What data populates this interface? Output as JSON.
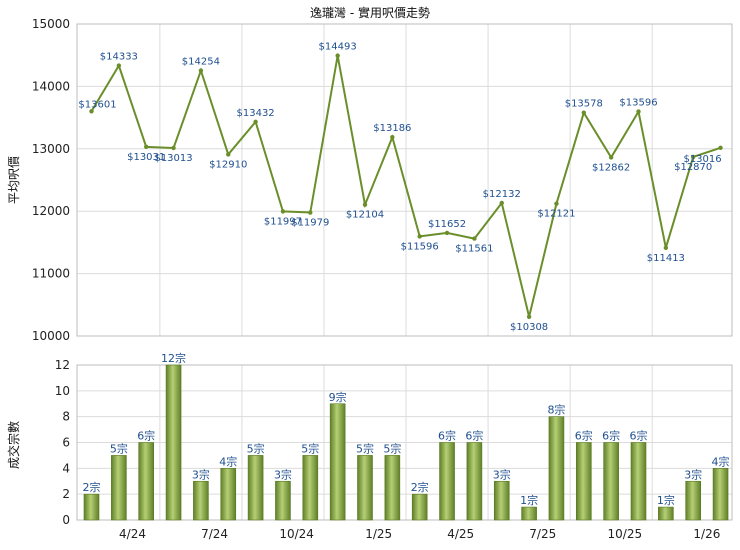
{
  "chart_data": [
    {
      "type": "line",
      "title": "逸瓏灣 - 實用呎價走勢",
      "ylabel": "平均呎價",
      "ylim": [
        10000,
        15000
      ],
      "yticks": [
        10000,
        11000,
        12000,
        13000,
        14000,
        15000
      ],
      "x_ticks": [
        "4/24",
        "7/24",
        "10/24",
        "1/25",
        "4/25",
        "7/25",
        "10/25",
        "1/26"
      ],
      "grid": true,
      "line_color": "#6a8f2a",
      "label_color": "#1f4f8f",
      "values": [
        13601,
        14333,
        13031,
        13013,
        14254,
        12910,
        13432,
        11997,
        11979,
        14493,
        12104,
        13186,
        11596,
        11652,
        11561,
        12132,
        10308,
        12121,
        13578,
        12862,
        13596,
        11413,
        12870,
        13016
      ],
      "labels": [
        "$13601",
        "$14333",
        "$13031",
        "$13013",
        "$14254",
        "$12910",
        "$13432",
        "$11997",
        "$11979",
        "$14493",
        "$12104",
        "$13186",
        "$11596",
        "$11652",
        "$11561",
        "$12132",
        "$10308",
        "$12121",
        "$13578",
        "$12862",
        "$13596",
        "$11413",
        "$12870",
        "$13016"
      ]
    },
    {
      "type": "bar",
      "ylabel": "成交宗數",
      "ylim": [
        0,
        12
      ],
      "yticks": [
        0,
        2,
        4,
        6,
        8,
        10,
        12
      ],
      "x_ticks": [
        "4/24",
        "7/24",
        "10/24",
        "1/25",
        "4/25",
        "7/25",
        "10/25",
        "1/26"
      ],
      "grid": true,
      "bar_color": "#7a9a3a",
      "label_color": "#1f4f8f",
      "values": [
        2,
        5,
        6,
        12,
        3,
        4,
        5,
        3,
        5,
        9,
        5,
        5,
        2,
        6,
        6,
        3,
        1,
        8,
        6,
        6,
        6,
        1,
        3,
        4
      ],
      "labels": [
        "2宗",
        "5宗",
        "6宗",
        "12宗",
        "3宗",
        "4宗",
        "5宗",
        "3宗",
        "5宗",
        "9宗",
        "5宗",
        "5宗",
        "2宗",
        "6宗",
        "6宗",
        "3宗",
        "1宗",
        "8宗",
        "6宗",
        "6宗",
        "6宗",
        "1宗",
        "3宗",
        "4宗"
      ]
    }
  ]
}
